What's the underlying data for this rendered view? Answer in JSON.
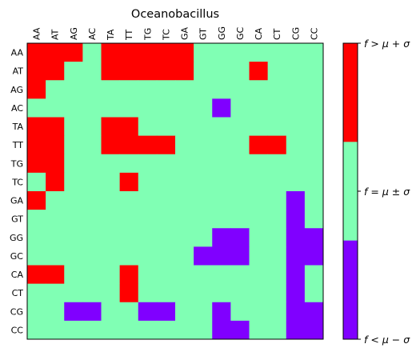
{
  "chart_data": {
    "type": "heatmap",
    "title": "Oceanobacillus",
    "x_labels": [
      "AA",
      "AT",
      "AG",
      "AC",
      "TA",
      "TT",
      "TG",
      "TC",
      "GA",
      "GT",
      "GG",
      "GC",
      "CA",
      "CT",
      "CG",
      "CC"
    ],
    "y_labels": [
      "AA",
      "AT",
      "AG",
      "AC",
      "TA",
      "TT",
      "TG",
      "TC",
      "GA",
      "GT",
      "GG",
      "GC",
      "CA",
      "CT",
      "CG",
      "CC"
    ],
    "levels": {
      "1": {
        "label": "f > μ + σ",
        "color": "#ff0000"
      },
      "0": {
        "label": "f = μ ± σ",
        "color": "#80ffb4"
      },
      "-1": {
        "label": "f < μ − σ",
        "color": "#8000ff"
      }
    },
    "values": [
      [
        1,
        1,
        1,
        0,
        1,
        1,
        1,
        1,
        1,
        0,
        0,
        0,
        0,
        0,
        0,
        0
      ],
      [
        1,
        1,
        0,
        0,
        1,
        1,
        1,
        1,
        1,
        0,
        0,
        0,
        1,
        0,
        0,
        0
      ],
      [
        1,
        0,
        0,
        0,
        0,
        0,
        0,
        0,
        0,
        0,
        0,
        0,
        0,
        0,
        0,
        0
      ],
      [
        0,
        0,
        0,
        0,
        0,
        0,
        0,
        0,
        0,
        0,
        -1,
        0,
        0,
        0,
        0,
        0
      ],
      [
        1,
        1,
        0,
        0,
        1,
        1,
        0,
        0,
        0,
        0,
        0,
        0,
        0,
        0,
        0,
        0
      ],
      [
        1,
        1,
        0,
        0,
        1,
        1,
        1,
        1,
        0,
        0,
        0,
        0,
        1,
        1,
        0,
        0
      ],
      [
        1,
        1,
        0,
        0,
        0,
        0,
        0,
        0,
        0,
        0,
        0,
        0,
        0,
        0,
        0,
        0
      ],
      [
        0,
        1,
        0,
        0,
        0,
        1,
        0,
        0,
        0,
        0,
        0,
        0,
        0,
        0,
        0,
        0
      ],
      [
        1,
        0,
        0,
        0,
        0,
        0,
        0,
        0,
        0,
        0,
        0,
        0,
        0,
        0,
        -1,
        0
      ],
      [
        0,
        0,
        0,
        0,
        0,
        0,
        0,
        0,
        0,
        0,
        0,
        0,
        0,
        0,
        -1,
        0
      ],
      [
        0,
        0,
        0,
        0,
        0,
        0,
        0,
        0,
        0,
        0,
        -1,
        -1,
        0,
        0,
        -1,
        -1
      ],
      [
        0,
        0,
        0,
        0,
        0,
        0,
        0,
        0,
        0,
        -1,
        -1,
        -1,
        0,
        0,
        -1,
        -1
      ],
      [
        1,
        1,
        0,
        0,
        0,
        1,
        0,
        0,
        0,
        0,
        0,
        0,
        0,
        0,
        -1,
        0
      ],
      [
        0,
        0,
        0,
        0,
        0,
        1,
        0,
        0,
        0,
        0,
        0,
        0,
        0,
        0,
        -1,
        0
      ],
      [
        0,
        0,
        -1,
        -1,
        0,
        0,
        -1,
        -1,
        0,
        0,
        -1,
        0,
        0,
        0,
        -1,
        -1
      ],
      [
        0,
        0,
        0,
        0,
        0,
        0,
        0,
        0,
        0,
        0,
        -1,
        -1,
        0,
        0,
        -1,
        -1
      ]
    ],
    "colorbar_labels": [
      "f > μ + σ",
      "f = μ ± σ",
      "f < μ − σ"
    ]
  }
}
